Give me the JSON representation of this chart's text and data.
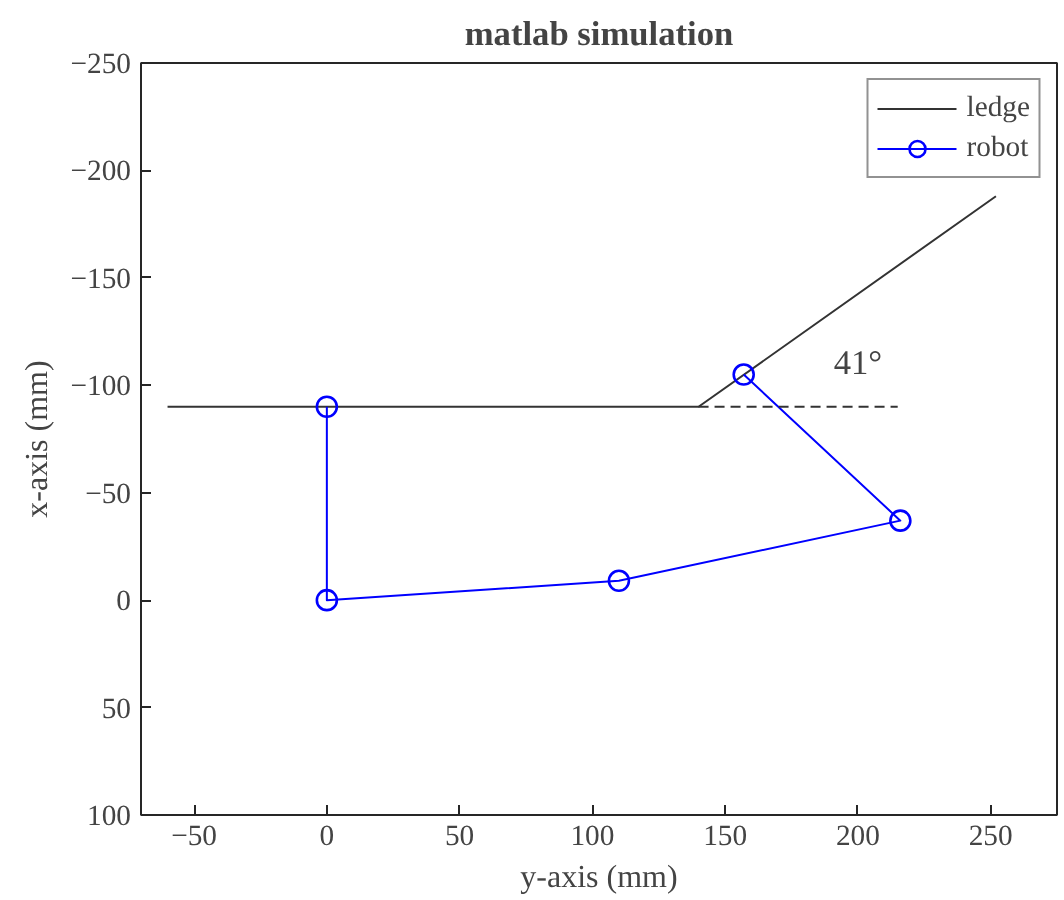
{
  "chart_data": {
    "type": "line",
    "title": "matlab simulation",
    "xlabel": "y-axis (mm)",
    "ylabel": "x-axis (mm)",
    "xlim": [
      -70,
      275
    ],
    "ylim": [
      100,
      -250
    ],
    "xticks": [
      -50,
      0,
      50,
      100,
      150,
      200,
      250
    ],
    "yticks": [
      -250,
      -200,
      -150,
      -100,
      -50,
      0,
      50,
      100
    ],
    "grid": false,
    "legend": "top right",
    "series": [
      {
        "name": "ledge",
        "color": "#333333",
        "x": [
          -60,
          140,
          252
        ],
        "values": [
          -90,
          -90,
          -188
        ],
        "marker": "none",
        "line_style": "solid"
      },
      {
        "name": "robot",
        "color": "#0000ff",
        "x": [
          0,
          0,
          110,
          216,
          157
        ],
        "values": [
          -90,
          0,
          -9,
          -37,
          -105
        ],
        "marker": "circle",
        "line_style": "solid"
      },
      {
        "color": "#333333",
        "x": [
          140,
          215
        ],
        "values": [
          -90,
          -90
        ],
        "marker": "none",
        "line_style": "dashed"
      }
    ],
    "annotations": [
      "41°"
    ]
  }
}
